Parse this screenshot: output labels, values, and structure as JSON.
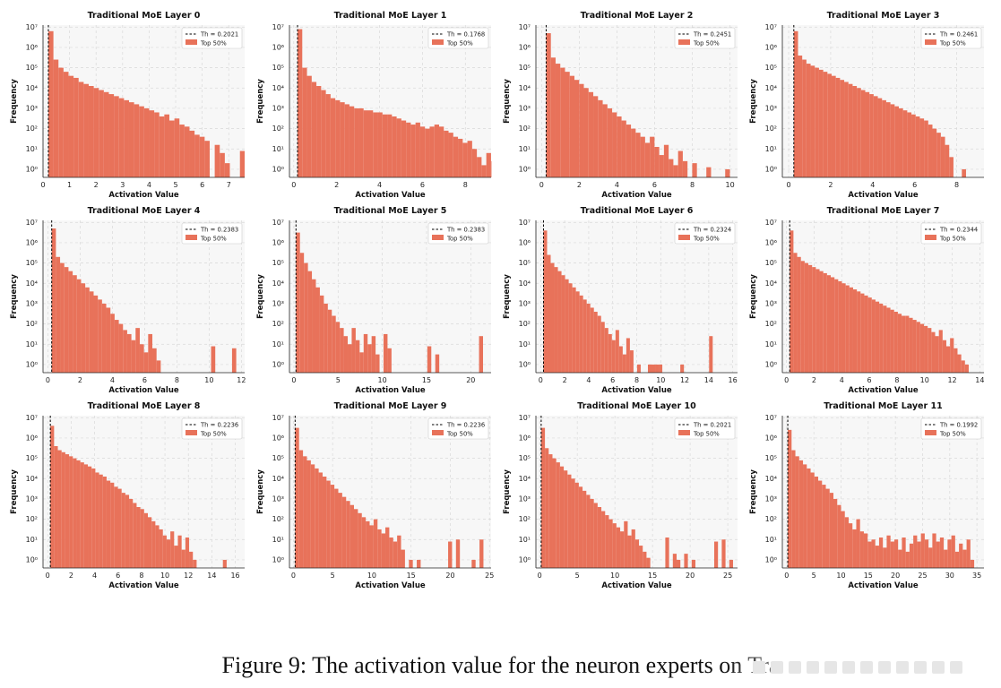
{
  "colors": {
    "bar": "#E8725A",
    "grid": "#d9d9d9",
    "panel_bg": "#f7f7f7",
    "threshold_line": "#000000"
  },
  "figure_caption": "Figure 9: The activation value for the neuron experts on Tra",
  "chart_data": [
    {
      "type": "bar",
      "title": "Traditional MoE Layer 0",
      "xlabel": "Activation Value",
      "ylabel": "Frequency",
      "x_range": [
        0,
        7.6
      ],
      "x_ticks": [
        "0",
        "1",
        "2",
        "3",
        "4",
        "5",
        "6",
        "7"
      ],
      "x_tick_values": [
        0,
        1,
        2,
        3,
        4,
        5,
        6,
        7
      ],
      "yscale": "log",
      "y_range_exp": [
        -0.4,
        7.1
      ],
      "threshold": 0.2021,
      "legend": [
        "Th = 0.2021",
        "Top 50%"
      ],
      "bin_width": 0.19,
      "x_start": 0.2021,
      "log10_counts": [
        6.8,
        5.4,
        5.0,
        4.8,
        4.6,
        4.5,
        4.3,
        4.2,
        4.1,
        4.0,
        3.9,
        3.8,
        3.7,
        3.6,
        3.5,
        3.4,
        3.3,
        3.2,
        3.1,
        3.0,
        2.9,
        2.8,
        2.6,
        2.7,
        2.4,
        2.5,
        2.2,
        2.1,
        1.9,
        1.7,
        1.6,
        1.4,
        -1,
        1.2,
        0.8,
        0.3,
        -1,
        -1,
        0.9,
        0.6
      ]
    },
    {
      "type": "bar",
      "title": "Traditional MoE Layer 1",
      "xlabel": "Activation Value",
      "ylabel": "Frequency",
      "x_range": [
        -0.2,
        9.2
      ],
      "x_ticks": [
        "0",
        "2",
        "4",
        "6",
        "8"
      ],
      "x_tick_values": [
        0,
        2,
        4,
        6,
        8
      ],
      "yscale": "log",
      "y_range_exp": [
        -0.4,
        7.1
      ],
      "threshold": 0.1768,
      "legend": [
        "Th = 0.1768",
        "Top 50%"
      ],
      "bin_width": 0.22,
      "x_start": 0.1768,
      "log10_counts": [
        6.9,
        5.0,
        4.6,
        4.3,
        4.1,
        3.9,
        3.7,
        3.5,
        3.4,
        3.3,
        3.2,
        3.1,
        3.0,
        3.0,
        2.9,
        2.9,
        2.8,
        2.8,
        2.7,
        2.7,
        2.6,
        2.5,
        2.4,
        2.3,
        2.2,
        2.3,
        2.1,
        2.0,
        2.1,
        2.2,
        2.1,
        1.9,
        1.8,
        1.6,
        1.5,
        1.3,
        1.4,
        1.0,
        0.6,
        0.2,
        0.8,
        0.4
      ]
    },
    {
      "type": "bar",
      "title": "Traditional MoE Layer 2",
      "xlabel": "Activation Value",
      "ylabel": "Frequency",
      "x_range": [
        -0.3,
        10.4
      ],
      "x_ticks": [
        "0",
        "2",
        "4",
        "6",
        "8",
        "10"
      ],
      "x_tick_values": [
        0,
        2,
        4,
        6,
        8,
        10
      ],
      "yscale": "log",
      "y_range_exp": [
        -0.4,
        7.1
      ],
      "threshold": 0.2451,
      "legend": [
        "Th = 0.2451",
        "Top 50%"
      ],
      "bin_width": 0.25,
      "x_start": 0.2451,
      "log10_counts": [
        6.7,
        5.5,
        5.2,
        5.0,
        4.8,
        4.6,
        4.4,
        4.2,
        4.0,
        3.8,
        3.6,
        3.4,
        3.2,
        3.0,
        2.8,
        2.6,
        2.4,
        2.2,
        2.0,
        1.8,
        1.6,
        1.3,
        1.6,
        1.1,
        0.7,
        1.2,
        0.5,
        0.2,
        0.9,
        0.4,
        -1,
        0.3,
        -1,
        -1,
        0.1,
        -1,
        -1,
        -1,
        0.0
      ]
    },
    {
      "type": "bar",
      "title": "Traditional MoE Layer 3",
      "xlabel": "Activation Value",
      "ylabel": "Frequency",
      "x_range": [
        -0.3,
        9.3
      ],
      "x_ticks": [
        "0",
        "2",
        "4",
        "6",
        "8"
      ],
      "x_tick_values": [
        0,
        2,
        4,
        6,
        8
      ],
      "yscale": "log",
      "y_range_exp": [
        -0.4,
        7.1
      ],
      "threshold": 0.2461,
      "legend": [
        "Th = 0.2461",
        "Top 50%"
      ],
      "bin_width": 0.2,
      "x_start": 0.2461,
      "log10_counts": [
        6.8,
        5.6,
        5.4,
        5.2,
        5.1,
        5.0,
        4.9,
        4.8,
        4.7,
        4.6,
        4.5,
        4.4,
        4.3,
        4.2,
        4.1,
        4.0,
        3.9,
        3.8,
        3.7,
        3.6,
        3.5,
        3.4,
        3.3,
        3.2,
        3.1,
        3.0,
        2.9,
        2.8,
        2.7,
        2.6,
        2.5,
        2.4,
        2.2,
        2.0,
        1.8,
        1.6,
        1.2,
        0.6,
        -1,
        -1,
        0.0
      ]
    },
    {
      "type": "bar",
      "title": "Traditional MoE Layer 4",
      "xlabel": "Activation Value",
      "ylabel": "Frequency",
      "x_range": [
        -0.3,
        12.2
      ],
      "x_ticks": [
        "0",
        "2",
        "4",
        "6",
        "8",
        "10",
        "12"
      ],
      "x_tick_values": [
        0,
        2,
        4,
        6,
        8,
        10,
        12
      ],
      "yscale": "log",
      "y_range_exp": [
        -0.4,
        7.1
      ],
      "threshold": 0.2383,
      "legend": [
        "Th = 0.2383",
        "Top 50%"
      ],
      "bin_width": 0.26,
      "x_start": 0.2383,
      "log10_counts": [
        6.7,
        5.3,
        5.0,
        4.8,
        4.6,
        4.4,
        4.2,
        4.0,
        3.8,
        3.6,
        3.4,
        3.2,
        3.0,
        2.8,
        2.5,
        2.2,
        2.0,
        1.7,
        1.5,
        1.2,
        1.8,
        1.0,
        0.6,
        1.5,
        0.8,
        0.2,
        -1,
        -1,
        -1,
        -1,
        -1,
        -1,
        -1,
        -1,
        -1,
        -1,
        -1,
        -1,
        0.9,
        -1,
        -1,
        -1,
        -1,
        0.8
      ]
    },
    {
      "type": "bar",
      "title": "Traditional MoE Layer 5",
      "xlabel": "Activation Value",
      "ylabel": "Frequency",
      "x_range": [
        -0.5,
        22.3
      ],
      "x_ticks": [
        "0",
        "5",
        "10",
        "15",
        "20"
      ],
      "x_tick_values": [
        0,
        5,
        10,
        15,
        20
      ],
      "yscale": "log",
      "y_range_exp": [
        -0.4,
        7.1
      ],
      "threshold": 0.2383,
      "legend": [
        "Th = 0.2383",
        "Top 50%"
      ],
      "bin_width": 0.45,
      "x_start": 0.2383,
      "log10_counts": [
        6.5,
        5.5,
        5.0,
        4.6,
        4.2,
        3.8,
        3.4,
        3.0,
        2.7,
        2.4,
        2.1,
        1.8,
        1.4,
        1.0,
        1.8,
        1.2,
        0.6,
        1.5,
        1.0,
        1.4,
        0.5,
        -1,
        1.5,
        0.8,
        -1,
        -1,
        -1,
        -1,
        -1,
        -1,
        -1,
        -1,
        -1,
        0.9,
        -1,
        0.5,
        -1,
        -1,
        -1,
        -1,
        -1,
        -1,
        -1,
        -1,
        -1,
        -1,
        1.4
      ]
    },
    {
      "type": "bar",
      "title": "Traditional MoE Layer 6",
      "xlabel": "Activation Value",
      "ylabel": "Frequency",
      "x_range": [
        -0.4,
        16.4
      ],
      "x_ticks": [
        "0",
        "2",
        "4",
        "6",
        "8",
        "10",
        "12",
        "14",
        "16"
      ],
      "x_tick_values": [
        0,
        2,
        4,
        6,
        8,
        10,
        12,
        14,
        16
      ],
      "yscale": "log",
      "y_range_exp": [
        -0.4,
        7.1
      ],
      "threshold": 0.2324,
      "legend": [
        "Th = 0.2324",
        "Top 50%"
      ],
      "bin_width": 0.3,
      "x_start": 0.2324,
      "log10_counts": [
        6.6,
        5.4,
        5.0,
        4.8,
        4.6,
        4.4,
        4.2,
        4.0,
        3.8,
        3.6,
        3.4,
        3.2,
        3.0,
        2.8,
        2.6,
        2.4,
        2.1,
        1.8,
        1.5,
        1.2,
        1.7,
        0.9,
        0.5,
        1.3,
        0.7,
        -1,
        0.0,
        -1,
        -1,
        0.0,
        0.0,
        0.0,
        0.0,
        -1,
        -1,
        -1,
        -1,
        -1,
        0.0,
        -1,
        -1,
        -1,
        -1,
        -1,
        -1,
        -1,
        1.4
      ]
    },
    {
      "type": "bar",
      "title": "Traditional MoE Layer 7",
      "xlabel": "Activation Value",
      "ylabel": "Frequency",
      "x_range": [
        -0.3,
        14.3
      ],
      "x_ticks": [
        "0",
        "2",
        "4",
        "6",
        "8",
        "10",
        "12",
        "14"
      ],
      "x_tick_values": [
        0,
        2,
        4,
        6,
        8,
        10,
        12,
        14
      ],
      "yscale": "log",
      "y_range_exp": [
        -0.4,
        7.1
      ],
      "threshold": 0.2344,
      "legend": [
        "Th = 0.2344",
        "Top 50%"
      ],
      "bin_width": 0.27,
      "x_start": 0.2344,
      "log10_counts": [
        6.6,
        5.5,
        5.3,
        5.1,
        5.0,
        4.9,
        4.8,
        4.7,
        4.6,
        4.5,
        4.4,
        4.3,
        4.2,
        4.1,
        4.0,
        3.9,
        3.8,
        3.7,
        3.6,
        3.5,
        3.4,
        3.3,
        3.2,
        3.1,
        3.0,
        2.9,
        2.8,
        2.7,
        2.6,
        2.5,
        2.4,
        2.4,
        2.3,
        2.2,
        2.1,
        2.0,
        1.9,
        1.8,
        1.6,
        1.4,
        1.7,
        1.2,
        0.9,
        1.3,
        0.8,
        0.5,
        0.2,
        0.0
      ]
    },
    {
      "type": "bar",
      "title": "Traditional MoE Layer 8",
      "xlabel": "Activation Value",
      "ylabel": "Frequency",
      "x_range": [
        -0.4,
        16.8
      ],
      "x_ticks": [
        "0",
        "2",
        "4",
        "6",
        "8",
        "10",
        "12",
        "14",
        "16"
      ],
      "x_tick_values": [
        0,
        2,
        4,
        6,
        8,
        10,
        12,
        14,
        16
      ],
      "yscale": "log",
      "y_range_exp": [
        -0.4,
        7.1
      ],
      "threshold": 0.2236,
      "legend": [
        "Th = 0.2236",
        "Top 50%"
      ],
      "bin_width": 0.32,
      "x_start": 0.2236,
      "log10_counts": [
        6.6,
        5.6,
        5.4,
        5.3,
        5.2,
        5.1,
        5.0,
        4.9,
        4.8,
        4.7,
        4.6,
        4.5,
        4.3,
        4.2,
        4.1,
        3.9,
        3.8,
        3.6,
        3.5,
        3.3,
        3.2,
        3.0,
        2.8,
        2.6,
        2.5,
        2.3,
        2.1,
        1.9,
        1.7,
        1.5,
        1.2,
        1.0,
        1.4,
        0.7,
        1.2,
        0.5,
        1.1,
        0.4,
        0.0,
        -1,
        -1,
        -1,
        -1,
        -1,
        -1,
        -1,
        0.0
      ]
    },
    {
      "type": "bar",
      "title": "Traditional MoE Layer 9",
      "xlabel": "Activation Value",
      "ylabel": "Frequency",
      "x_range": [
        -0.5,
        25.2
      ],
      "x_ticks": [
        "0",
        "5",
        "10",
        "15",
        "20",
        "25"
      ],
      "x_tick_values": [
        0,
        5,
        10,
        15,
        20,
        25
      ],
      "yscale": "log",
      "y_range_exp": [
        -0.4,
        7.1
      ],
      "threshold": 0.2236,
      "legend": [
        "Th = 0.2236",
        "Top 50%"
      ],
      "bin_width": 0.5,
      "x_start": 0.2236,
      "log10_counts": [
        6.5,
        5.4,
        5.1,
        4.9,
        4.7,
        4.5,
        4.3,
        4.1,
        3.9,
        3.7,
        3.5,
        3.3,
        3.1,
        2.9,
        2.7,
        2.5,
        2.3,
        2.1,
        1.9,
        1.7,
        2.0,
        1.5,
        1.3,
        1.6,
        1.1,
        0.9,
        1.2,
        0.5,
        -1,
        0.0,
        -1,
        0.0,
        -1,
        -1,
        -1,
        -1,
        -1,
        -1,
        -1,
        0.9,
        -1,
        1.0,
        -1,
        -1,
        -1,
        0.0,
        -1,
        1.0
      ]
    },
    {
      "type": "bar",
      "title": "Traditional MoE Layer 10",
      "xlabel": "Activation Value",
      "ylabel": "Frequency",
      "x_range": [
        -0.5,
        26.3
      ],
      "x_ticks": [
        "0",
        "5",
        "10",
        "15",
        "20",
        "25"
      ],
      "x_tick_values": [
        0,
        5,
        10,
        15,
        20,
        25
      ],
      "yscale": "log",
      "y_range_exp": [
        -0.4,
        7.1
      ],
      "threshold": 0.2021,
      "legend": [
        "Th = 0.2021",
        "Top 50%"
      ],
      "bin_width": 0.5,
      "x_start": 0.2021,
      "log10_counts": [
        6.5,
        5.5,
        5.2,
        5.0,
        4.8,
        4.6,
        4.4,
        4.2,
        4.0,
        3.8,
        3.6,
        3.4,
        3.2,
        3.0,
        2.8,
        2.6,
        2.4,
        2.2,
        2.0,
        1.8,
        1.6,
        1.4,
        1.9,
        1.2,
        1.5,
        1.0,
        0.7,
        0.4,
        0.1,
        -1,
        -1,
        -1,
        -1,
        1.1,
        -1,
        0.3,
        0.0,
        -1,
        0.3,
        -1,
        0.0,
        -1,
        -1,
        -1,
        -1,
        -1,
        0.9,
        -1,
        1.0,
        -1,
        0.0
      ]
    },
    {
      "type": "bar",
      "title": "Traditional MoE Layer 11",
      "xlabel": "Activation Value",
      "ylabel": "Frequency",
      "x_range": [
        -0.8,
        36.3
      ],
      "x_ticks": [
        "0",
        "5",
        "10",
        "15",
        "20",
        "25",
        "30",
        "35"
      ],
      "x_tick_values": [
        0,
        5,
        10,
        15,
        20,
        25,
        30,
        35
      ],
      "yscale": "log",
      "y_range_exp": [
        -0.4,
        7.1
      ],
      "threshold": 0.1992,
      "legend": [
        "Th = 0.1992",
        "Top 50%"
      ],
      "bin_width": 0.7,
      "x_start": 0.1992,
      "log10_counts": [
        6.4,
        5.4,
        5.1,
        4.9,
        4.7,
        4.5,
        4.3,
        4.1,
        3.9,
        3.7,
        3.5,
        3.3,
        3.0,
        2.7,
        2.4,
        2.1,
        1.8,
        1.5,
        2.0,
        1.4,
        1.3,
        0.9,
        1.0,
        0.7,
        1.1,
        0.6,
        1.2,
        0.9,
        1.0,
        0.5,
        1.1,
        0.4,
        0.8,
        1.2,
        0.9,
        1.3,
        1.0,
        0.6,
        1.3,
        0.9,
        1.1,
        0.5,
        1.0,
        1.2,
        0.4,
        0.8,
        0.5,
        1.0,
        0.0
      ]
    }
  ]
}
